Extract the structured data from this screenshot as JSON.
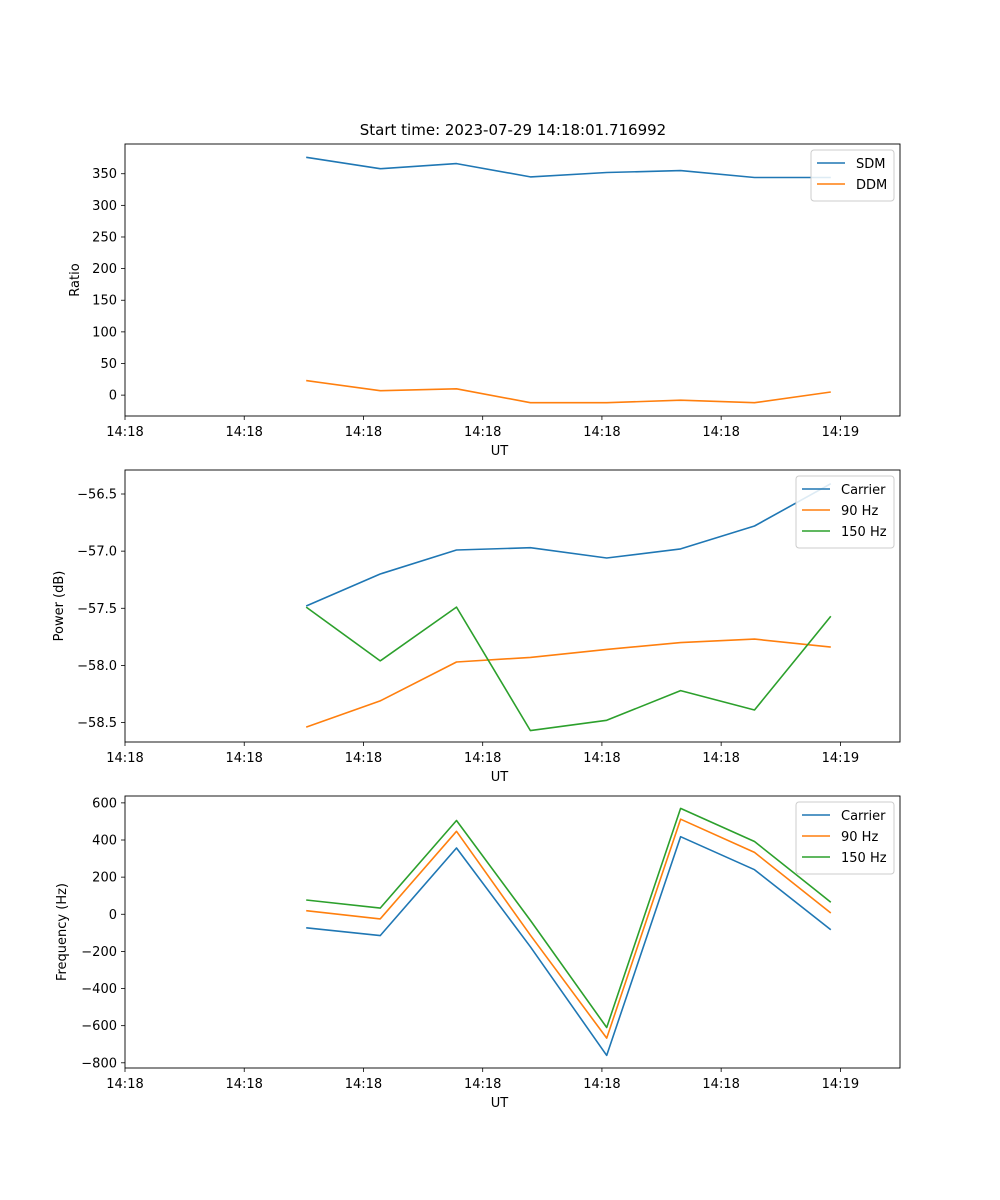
{
  "title": "Start time: 2023-07-29 14:18:01.716992",
  "colors": {
    "series1": "#1f77b4",
    "series2": "#ff7f0e",
    "series3": "#2ca02c",
    "axis": "#000000",
    "background": "#ffffff"
  },
  "chart_data": [
    {
      "type": "line",
      "title": "Start time: 2023-07-29 14:18:01.716992",
      "xlabel": "UT",
      "ylabel": "Ratio",
      "x": [
        1.76,
        2.07,
        2.39,
        2.7,
        3.02,
        3.33,
        3.64,
        3.96
      ],
      "xlim": [
        1.0,
        4.25
      ],
      "xticks": [
        1.0,
        1.5,
        2.0,
        2.5,
        3.0,
        3.5,
        4.0
      ],
      "xtick_labels": [
        "14:18",
        "14:18",
        "14:18",
        "14:18",
        "14:18",
        "14:18",
        "14:19"
      ],
      "ylim": [
        -33,
        397
      ],
      "yticks": [
        0,
        50,
        100,
        150,
        200,
        250,
        300,
        350
      ],
      "ytick_labels": [
        "0",
        "50",
        "100",
        "150",
        "200",
        "250",
        "300",
        "350"
      ],
      "legend_position": "top-right",
      "series": [
        {
          "name": "SDM",
          "color": "#1f77b4",
          "values": [
            376,
            358,
            366,
            345,
            352,
            355,
            344,
            344
          ]
        },
        {
          "name": "DDM",
          "color": "#ff7f0e",
          "values": [
            23,
            7,
            10,
            -12,
            -12,
            -8,
            -12,
            5
          ]
        }
      ]
    },
    {
      "type": "line",
      "xlabel": "UT",
      "ylabel": "Power (dB)",
      "x": [
        1.76,
        2.07,
        2.39,
        2.7,
        3.02,
        3.33,
        3.64,
        3.96
      ],
      "xlim": [
        1.0,
        4.25
      ],
      "xticks": [
        1.0,
        1.5,
        2.0,
        2.5,
        3.0,
        3.5,
        4.0
      ],
      "xtick_labels": [
        "14:18",
        "14:18",
        "14:18",
        "14:18",
        "14:18",
        "14:18",
        "14:19"
      ],
      "ylim": [
        -58.67,
        -56.29
      ],
      "yticks": [
        -58.5,
        -58.0,
        -57.5,
        -57.0,
        -56.5
      ],
      "ytick_labels": [
        "−58.5",
        "−58.0",
        "−57.5",
        "−57.0",
        "−56.5"
      ],
      "legend_position": "top-right",
      "series": [
        {
          "name": "Carrier",
          "color": "#1f77b4",
          "values": [
            -57.48,
            -57.2,
            -56.99,
            -56.97,
            -57.06,
            -56.98,
            -56.78,
            -56.41
          ]
        },
        {
          "name": "90 Hz",
          "color": "#ff7f0e",
          "values": [
            -58.54,
            -58.31,
            -57.97,
            -57.93,
            -57.86,
            -57.8,
            -57.77,
            -57.84
          ]
        },
        {
          "name": "150 Hz",
          "color": "#2ca02c",
          "values": [
            -57.49,
            -57.96,
            -57.49,
            -58.57,
            -58.48,
            -58.22,
            -58.39,
            -57.57
          ]
        }
      ]
    },
    {
      "type": "line",
      "xlabel": "UT",
      "ylabel": "Frequency (Hz)",
      "x": [
        1.76,
        2.07,
        2.39,
        2.7,
        3.02,
        3.33,
        3.64,
        3.96
      ],
      "xlim": [
        1.0,
        4.25
      ],
      "xticks": [
        1.0,
        1.5,
        2.0,
        2.5,
        3.0,
        3.5,
        4.0
      ],
      "xtick_labels": [
        "14:18",
        "14:18",
        "14:18",
        "14:18",
        "14:18",
        "14:18",
        "14:19"
      ],
      "ylim": [
        -828,
        637
      ],
      "yticks": [
        -800,
        -600,
        -400,
        -200,
        0,
        200,
        400,
        600
      ],
      "ytick_labels": [
        "−800",
        "−600",
        "−400",
        "−200",
        "0",
        "200",
        "400",
        "600"
      ],
      "legend_position": "top-right",
      "series": [
        {
          "name": "Carrier",
          "color": "#1f77b4",
          "values": [
            -73,
            -115,
            357,
            -175,
            -760,
            418,
            240,
            -83
          ]
        },
        {
          "name": "90 Hz",
          "color": "#ff7f0e",
          "values": [
            19,
            -25,
            447,
            -113,
            -667,
            512,
            333,
            7
          ]
        },
        {
          "name": "150 Hz",
          "color": "#2ca02c",
          "values": [
            77,
            33,
            505,
            -33,
            -610,
            570,
            392,
            65
          ]
        }
      ]
    }
  ]
}
